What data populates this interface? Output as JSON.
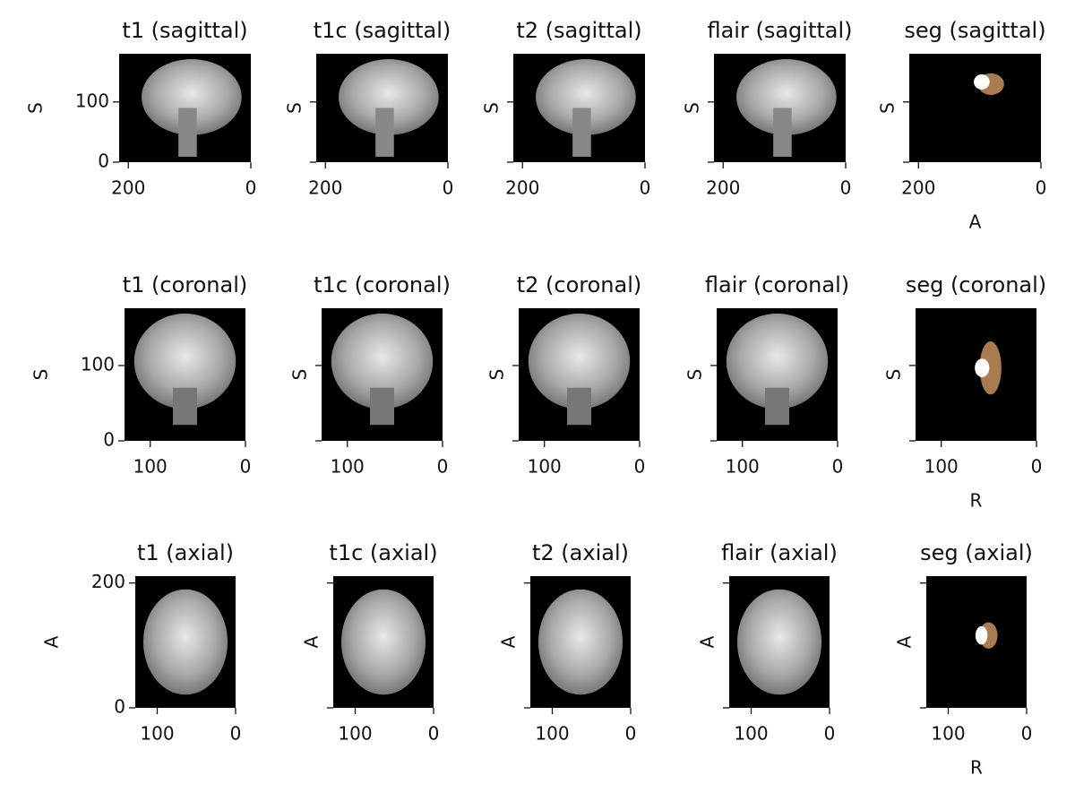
{
  "rows": [
    {
      "titles": [
        "t1 (sagittal)",
        "t1c (sagittal)",
        "t2 (sagittal)",
        "flair (sagittal)",
        "seg (sagittal)"
      ],
      "xlim": [
        215,
        0
      ],
      "ylim": [
        0,
        180
      ],
      "xticks": [
        200,
        0
      ],
      "yticks": [
        0,
        100
      ],
      "xlabel": "A",
      "ylabel": "S"
    },
    {
      "titles": [
        "t1 (coronal)",
        "t1c (coronal)",
        "t2 (coronal)",
        "flair (coronal)",
        "seg (coronal)"
      ],
      "xlim": [
        127,
        0
      ],
      "ylim": [
        0,
        176
      ],
      "xticks": [
        100,
        0
      ],
      "yticks": [
        0,
        100
      ],
      "xlabel": "R",
      "ylabel": "S"
    },
    {
      "titles": [
        "t1 (axial)",
        "t1c (axial)",
        "t2 (axial)",
        "flair (axial)",
        "seg (axial)"
      ],
      "xlim": [
        128,
        0
      ],
      "ylim": [
        0,
        211
      ],
      "xticks": [
        100,
        0
      ],
      "yticks": [
        0,
        200
      ],
      "xlabel": "R",
      "ylabel": "A"
    }
  ]
}
